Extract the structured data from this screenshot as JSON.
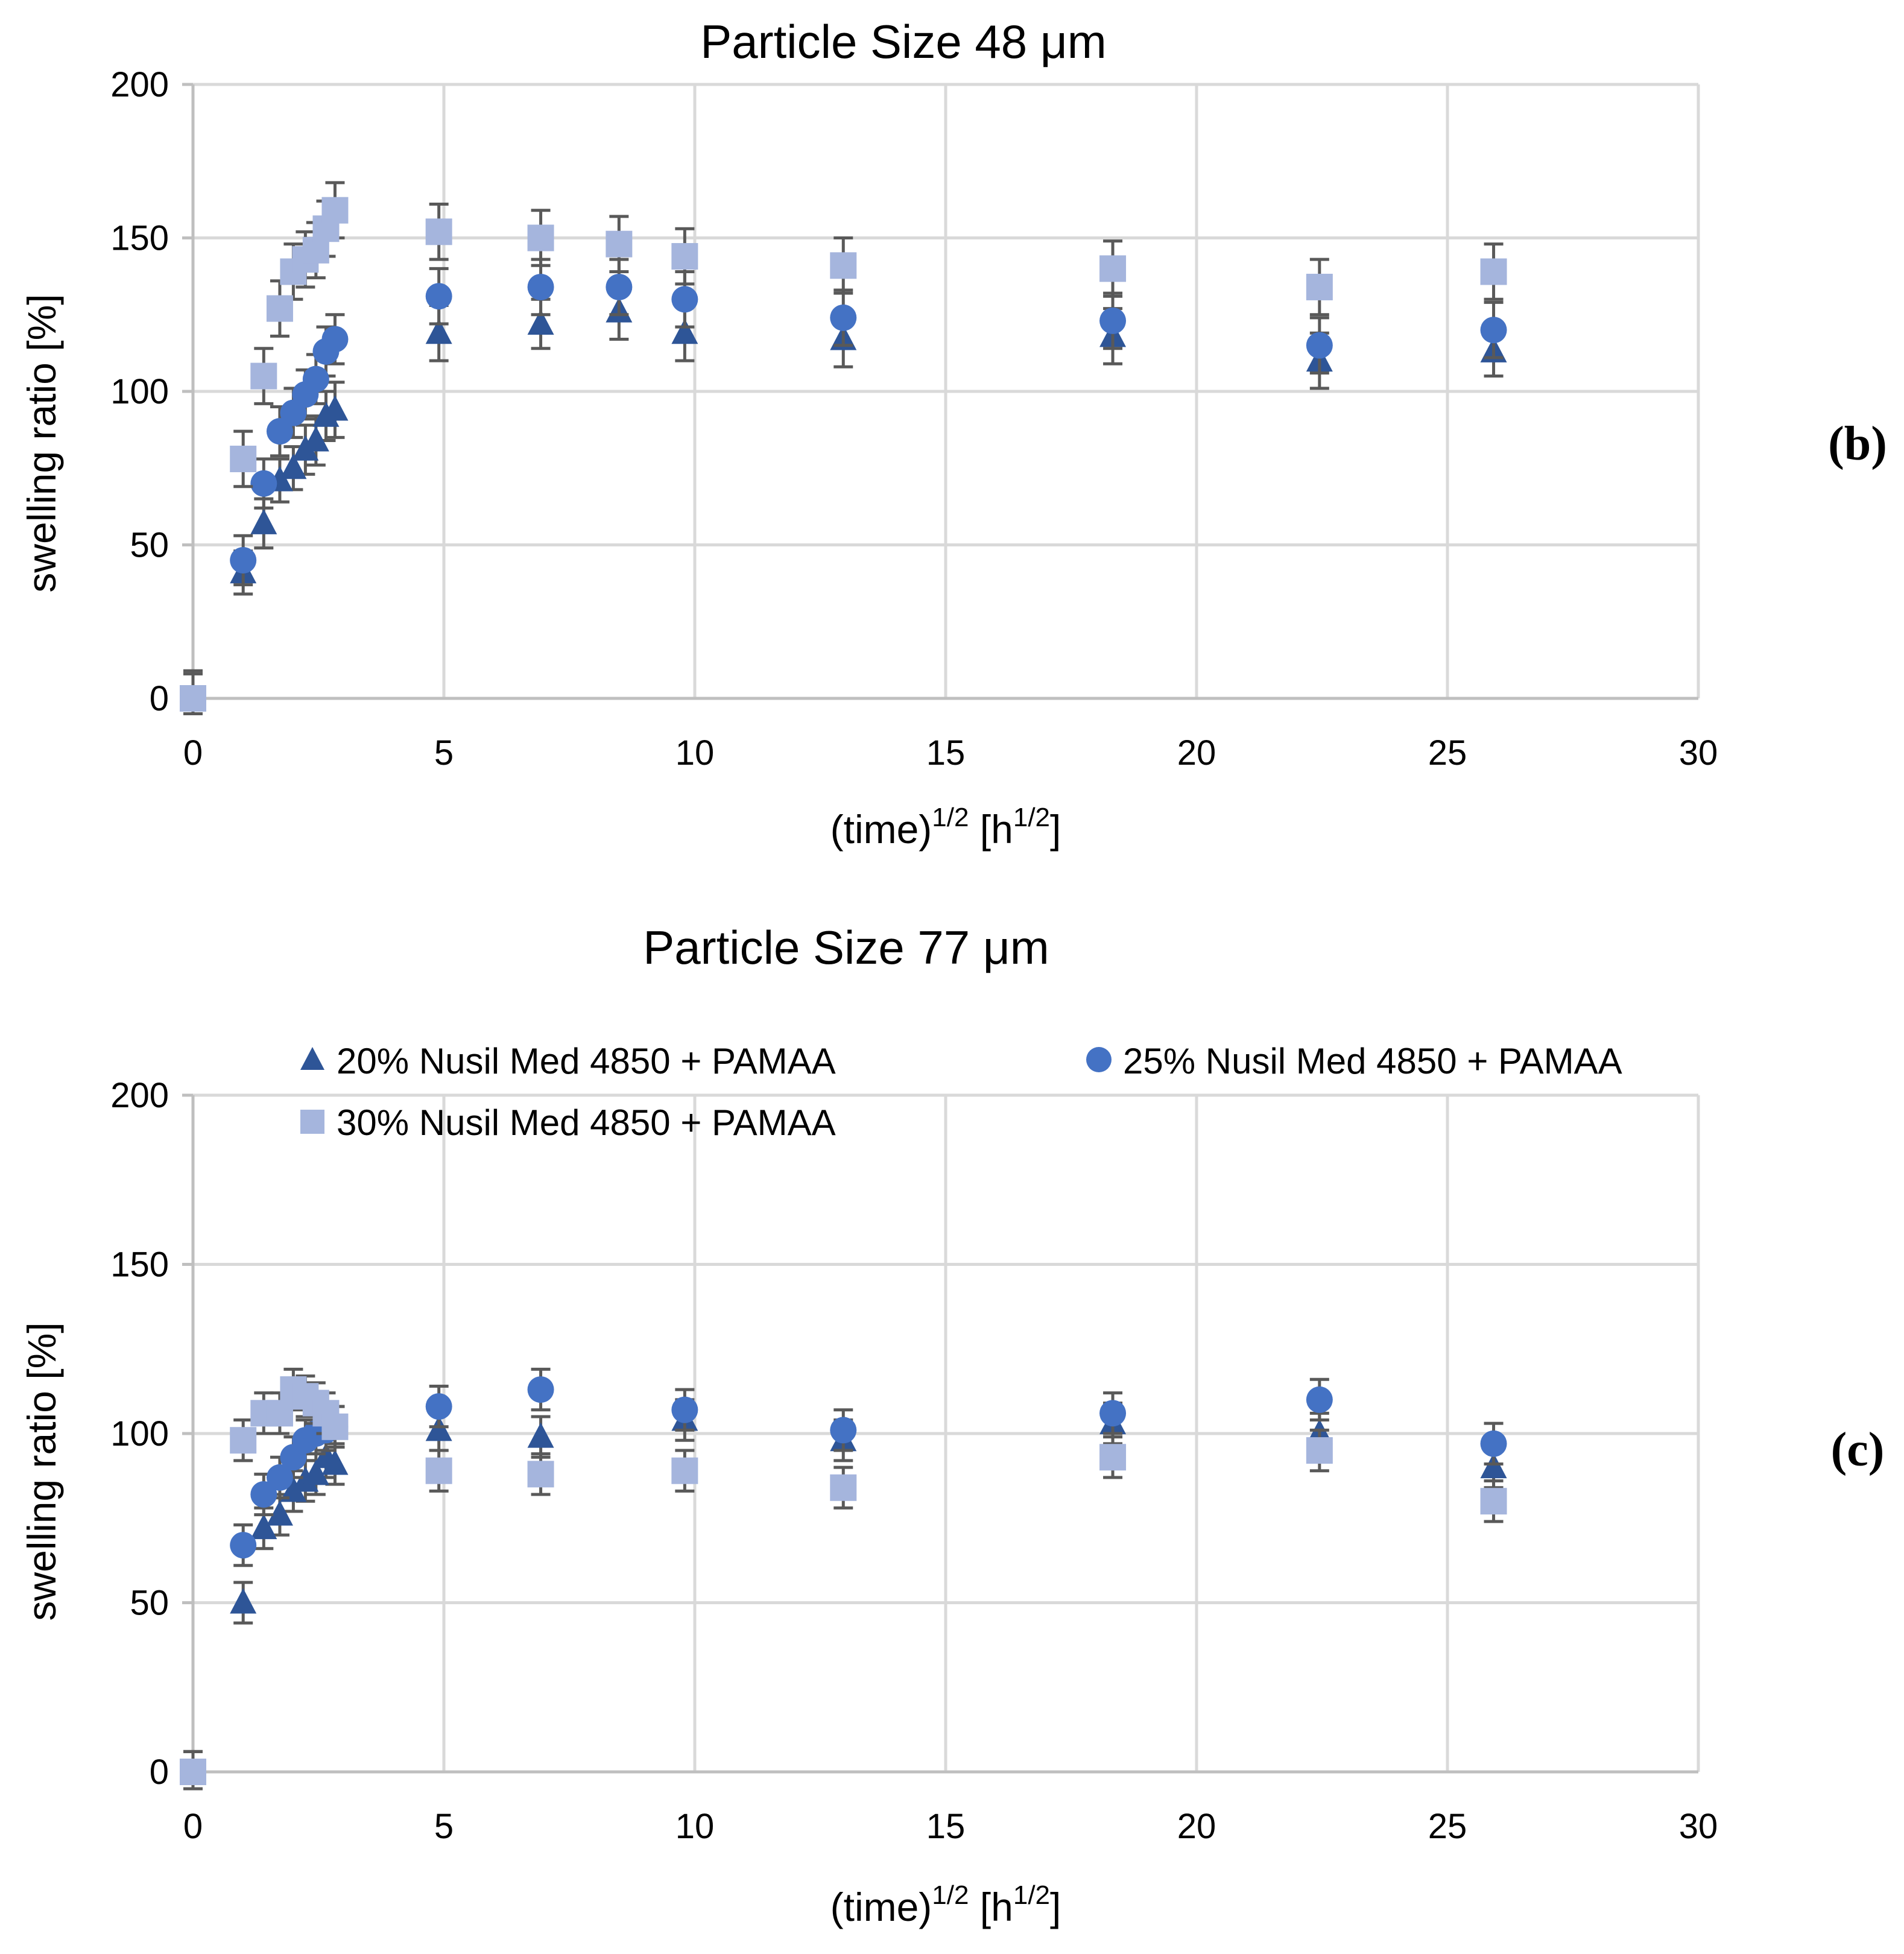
{
  "colors": {
    "s20": "#2e5597",
    "s25": "#4472c4",
    "s30": "#a5b5dd"
  },
  "legend": {
    "s20": "20% Nusil Med 4850 + PAMAA",
    "s25": "25% Nusil Med 4850 + PAMAA",
    "s30": "30% Nusil Med 4850 + PAMAA"
  },
  "chart_data": [
    {
      "type": "scatter",
      "panel_label": "(b)",
      "title": "Particle Size 48 μm",
      "xlabel_main": "(time)",
      "xlabel_sup1": "1/2",
      "xlabel_unit": " [h",
      "xlabel_sup2": "1/2",
      "xlabel_close": "]",
      "ylabel": "swelling ratio [%]",
      "xlim": [
        0,
        30
      ],
      "ylim": [
        0,
        200
      ],
      "xticks": [
        "0",
        "5",
        "10",
        "15",
        "20",
        "25",
        "30"
      ],
      "yticks": [
        "0",
        "50",
        "100",
        "150",
        "200"
      ],
      "grid": true,
      "legend": false,
      "series": [
        {
          "name": "20% Nusil Med 4850 + PAMAA",
          "marker": "triangle",
          "x": [
            0,
            1,
            1.41,
            1.73,
            2,
            2.24,
            2.45,
            2.65,
            2.83,
            4.9,
            6.93,
            8.49,
            9.8,
            12.96,
            18.33,
            22.45,
            25.92
          ],
          "y": [
            0,
            41,
            57,
            71,
            75,
            81,
            84,
            92,
            94,
            119,
            122,
            126,
            119,
            117,
            118,
            110,
            113
          ],
          "err": [
            8,
            7,
            8,
            7,
            7,
            8,
            8,
            8,
            9,
            9,
            8,
            9,
            9,
            9,
            9,
            9,
            8
          ]
        },
        {
          "name": "25% Nusil Med 4850 + PAMAA",
          "marker": "circle",
          "x": [
            0,
            1,
            1.41,
            1.73,
            2,
            2.24,
            2.45,
            2.65,
            2.83,
            4.9,
            6.93,
            8.49,
            9.8,
            12.96,
            18.33,
            22.45,
            25.92
          ],
          "y": [
            0,
            45,
            70,
            87,
            93,
            99,
            104,
            113,
            117,
            131,
            134,
            134,
            130,
            124,
            123,
            115,
            120
          ],
          "err": [
            8,
            8,
            8,
            8,
            8,
            8,
            8,
            8,
            8,
            9,
            9,
            9,
            9,
            9,
            9,
            9,
            9
          ]
        },
        {
          "name": "30% Nusil Med 4850 + PAMAA",
          "marker": "square",
          "x": [
            0,
            1,
            1.41,
            1.73,
            2,
            2.24,
            2.45,
            2.65,
            2.83,
            4.9,
            6.93,
            8.49,
            9.8,
            12.96,
            18.33,
            22.45,
            25.92
          ],
          "y": [
            0,
            78,
            105,
            127,
            139,
            143,
            146,
            153,
            159,
            152,
            150,
            148,
            144,
            141,
            140,
            134,
            139
          ],
          "err": [
            9,
            9,
            9,
            9,
            9,
            9,
            9,
            9,
            9,
            9,
            9,
            9,
            9,
            9,
            9,
            9,
            9
          ]
        }
      ]
    },
    {
      "type": "scatter",
      "panel_label": "(c)",
      "title": "Particle Size 77 μm",
      "xlabel_main": "(time)",
      "xlabel_sup1": "1/2",
      "xlabel_unit": " [h",
      "xlabel_sup2": "1/2",
      "xlabel_close": "]",
      "ylabel": "swelling ratio [%]",
      "xlim": [
        0,
        30
      ],
      "ylim": [
        0,
        200
      ],
      "xticks": [
        "0",
        "5",
        "10",
        "15",
        "20",
        "25",
        "30"
      ],
      "yticks": [
        "0",
        "50",
        "100",
        "150",
        "200"
      ],
      "grid": true,
      "legend": "top",
      "series": [
        {
          "name": "20% Nusil Med 4850 + PAMAA",
          "marker": "triangle",
          "x": [
            0,
            1,
            1.41,
            1.73,
            2,
            2.24,
            2.45,
            2.65,
            2.83,
            4.9,
            6.93,
            9.8,
            12.96,
            18.33,
            22.45,
            25.92
          ],
          "y": [
            0,
            50,
            72,
            76,
            83,
            86,
            88,
            93,
            91,
            101,
            99,
            104,
            98,
            103,
            100,
            90
          ],
          "err": [
            6,
            6,
            6,
            6,
            6,
            6,
            6,
            6,
            6,
            6,
            6,
            6,
            6,
            6,
            6,
            6
          ]
        },
        {
          "name": "25% Nusil Med 4850 + PAMAA",
          "marker": "circle",
          "x": [
            0,
            1,
            1.41,
            1.73,
            2,
            2.24,
            2.45,
            2.65,
            2.83,
            4.9,
            6.93,
            9.8,
            12.96,
            18.33,
            22.45,
            25.92
          ],
          "y": [
            0,
            67,
            82,
            87,
            93,
            98,
            100,
            101,
            102,
            108,
            113,
            107,
            101,
            106,
            110,
            97
          ],
          "err": [
            6,
            6,
            6,
            6,
            6,
            6,
            6,
            6,
            6,
            6,
            6,
            6,
            6,
            6,
            6,
            6
          ]
        },
        {
          "name": "30% Nusil Med 4850 + PAMAA",
          "marker": "square",
          "x": [
            0,
            1,
            1.41,
            1.73,
            2,
            2.24,
            2.45,
            2.65,
            2.83,
            4.9,
            6.93,
            9.8,
            12.96,
            18.33,
            22.45,
            25.92
          ],
          "y": [
            0,
            98,
            106,
            106,
            113,
            111,
            109,
            106,
            102,
            89,
            88,
            89,
            84,
            93,
            95,
            80
          ],
          "err": [
            6,
            6,
            6,
            6,
            6,
            6,
            6,
            6,
            6,
            6,
            6,
            6,
            6,
            6,
            6,
            6
          ]
        }
      ]
    }
  ]
}
